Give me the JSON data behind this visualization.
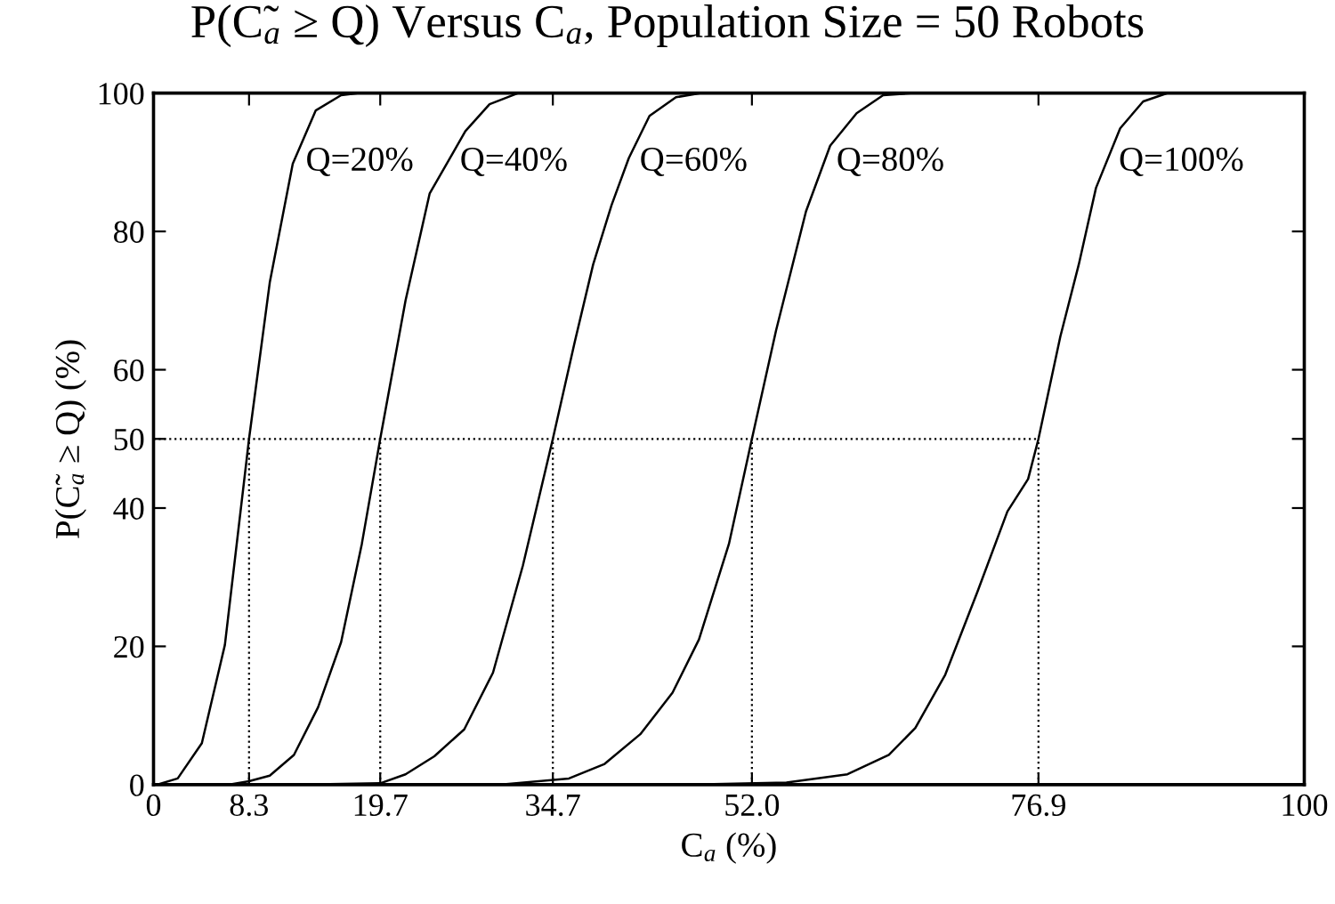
{
  "chart_data": {
    "type": "line",
    "title": "P(C̃$_{a}$ ≥ Q) Versus C$_{a}$, Population Size = 50 Robots",
    "xlabel": "C$_{a}$ (%)",
    "ylabel": "P(C̃$_{a}$ ≥ Q) (%)",
    "xlim": [
      0,
      100
    ],
    "ylim": [
      0,
      100
    ],
    "xticks": [
      0,
      8.3,
      19.7,
      34.7,
      {
        "value": 52.0,
        "label": "52.0"
      },
      76.9,
      100
    ],
    "yticks": [
      0,
      20,
      40,
      50,
      60,
      80,
      100
    ],
    "grid": false,
    "legend": false,
    "marker": "none",
    "line_style": "solid",
    "series": [
      {
        "name": "Q=20%",
        "color": "#000000",
        "x": [
          0.3,
          2.1,
          4.2,
          6.2,
          8.3,
          10.1,
          12.1,
          14.1,
          16.3,
          17.8
        ],
        "values": [
          0,
          0.9,
          6.0,
          20.2,
          50,
          72.6,
          89.8,
          97.5,
          99.7,
          100
        ]
      },
      {
        "name": "Q=40%",
        "color": "#000000",
        "x": [
          6.5,
          8.3,
          10.1,
          12.2,
          14.3,
          16.3,
          18.1,
          19.7,
          21.9,
          24.0,
          27.1,
          29.2,
          31.7
        ],
        "values": [
          0,
          0.5,
          1.3,
          4.3,
          11.2,
          20.6,
          34.8,
          50,
          70,
          85.5,
          94.5,
          98.4,
          100
        ]
      },
      {
        "name": "Q=60%",
        "color": "#000000",
        "x": [
          12,
          19.7,
          21.9,
          24.4,
          27.0,
          29.5,
          32.1,
          34.7,
          36.6,
          38.2,
          39.8,
          41.3,
          43.1,
          45.4,
          47.5
        ],
        "values": [
          0,
          0.2,
          1.5,
          4.1,
          8.0,
          16.2,
          31.7,
          50,
          64.0,
          75.2,
          83.8,
          90.6,
          96.7,
          99.4,
          100
        ]
      },
      {
        "name": "Q=80%",
        "color": "#000000",
        "x": [
          30,
          36.1,
          39.2,
          42.3,
          45.1,
          47.4,
          50.0,
          52.0,
          54.1,
          56.7,
          58.8,
          61.1,
          63.4,
          66
        ],
        "values": [
          0,
          0.9,
          3.0,
          7.3,
          13.3,
          21.0,
          34.8,
          50,
          65.7,
          82.9,
          92.4,
          97.1,
          99.7,
          100
        ]
      },
      {
        "name": "Q=100%",
        "color": "#000000",
        "x": [
          46,
          55,
          60.3,
          63.9,
          66.2,
          68.8,
          71.6,
          74.2,
          76.0,
          76.9,
          78.8,
          80.4,
          81.9,
          84.0,
          86.0,
          88.1
        ],
        "values": [
          0,
          0.3,
          1.5,
          4.3,
          8.2,
          15.9,
          27.9,
          39.5,
          44.2,
          50,
          64.8,
          75.2,
          86.3,
          94.9,
          98.8,
          100
        ]
      }
    ],
    "ref_lines": [
      {
        "axis": "y",
        "value": 50,
        "line_style": "dotted",
        "color": "#000000"
      },
      {
        "axis": "x",
        "value": 8.3,
        "line_style": "dotted",
        "color": "#000000"
      },
      {
        "axis": "x",
        "value": 19.7,
        "line_style": "dotted",
        "color": "#000000"
      },
      {
        "axis": "x",
        "value": 34.7,
        "line_style": "dotted",
        "color": "#000000"
      },
      {
        "axis": "x",
        "value": 52.0,
        "line_style": "dotted",
        "color": "#000000"
      },
      {
        "axis": "x",
        "value": 76.9,
        "line_style": "dotted",
        "color": "#000000"
      }
    ]
  }
}
